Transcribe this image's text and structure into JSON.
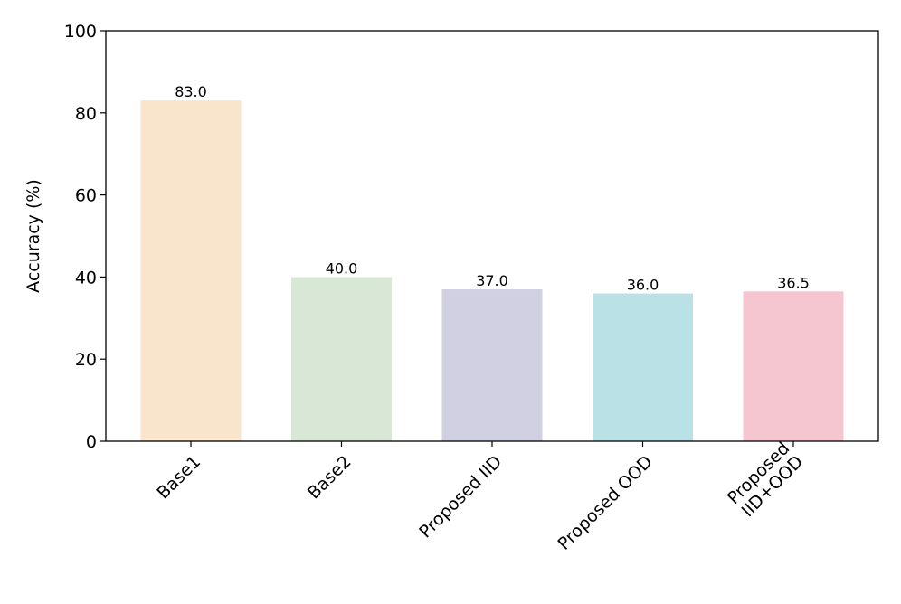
{
  "chart_data": {
    "type": "bar",
    "title": "",
    "xlabel": "",
    "ylabel": "Accuracy (%)",
    "ylim": [
      0,
      100
    ],
    "yticks": [
      0,
      20,
      40,
      60,
      80,
      100
    ],
    "grid": false,
    "categories": [
      "Base1",
      "Base2",
      "Proposed IID",
      "Proposed OOD",
      "Proposed\nIID+OOD"
    ],
    "values": [
      83.0,
      40.0,
      37.0,
      36.0,
      36.5
    ],
    "data_labels": [
      "83.0",
      "40.0",
      "37.0",
      "36.0",
      "36.5"
    ],
    "colors": [
      "#f9e5cc",
      "#d9e8d6",
      "#d1cfe2",
      "#bae1e5",
      "#f5c6cf"
    ]
  }
}
